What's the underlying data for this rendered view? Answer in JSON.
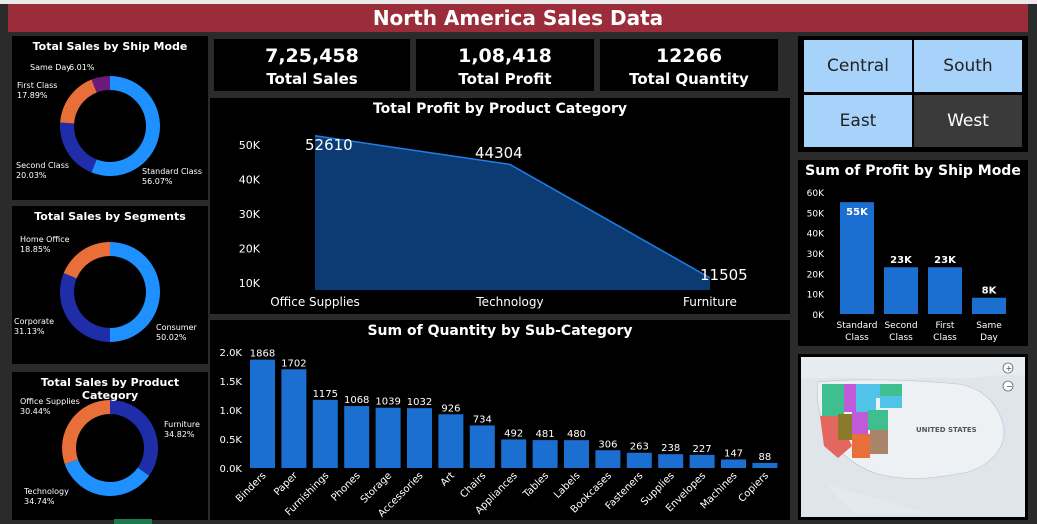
{
  "title": "North America Sales Data",
  "kpis": [
    {
      "value": "7,25,458",
      "label": "Total Sales"
    },
    {
      "value": "1,08,418",
      "label": "Total Profit"
    },
    {
      "value": "12266",
      "label": "Total Quantity"
    }
  ],
  "region_slicer": {
    "items": [
      {
        "label": "Central",
        "selected": true
      },
      {
        "label": "South",
        "selected": true
      },
      {
        "label": "East",
        "selected": true
      },
      {
        "label": "West",
        "selected": false
      }
    ]
  },
  "colors": {
    "title_bar": "#9b2d3a",
    "blue": "#1e90ff",
    "dark_blue": "#1f2ea8",
    "orange": "#e86f3a",
    "purple": "#6b1a7a",
    "bar": "#1a6fd0"
  },
  "donuts": {
    "ship_mode": {
      "title": "Total Sales by Ship Mode",
      "slices": [
        {
          "name": "Standard Class",
          "value": 56.07,
          "label": "56.07%",
          "color": "#1e90ff"
        },
        {
          "name": "Second Class",
          "value": 20.03,
          "label": "20.03%",
          "color": "#1f2ea8"
        },
        {
          "name": "First Class",
          "value": 17.89,
          "label": "17.89%",
          "color": "#e86f3a"
        },
        {
          "name": "Same Day",
          "value": 6.01,
          "label": "6.01%",
          "color": "#6b1a7a"
        }
      ]
    },
    "segments": {
      "title": "Total Sales by Segments",
      "slices": [
        {
          "name": "Consumer",
          "value": 50.02,
          "label": "50.02%",
          "color": "#1e90ff"
        },
        {
          "name": "Corporate",
          "value": 31.13,
          "label": "31.13%",
          "color": "#1f2ea8"
        },
        {
          "name": "Home Office",
          "value": 18.85,
          "label": "18.85%",
          "color": "#e86f3a"
        }
      ]
    },
    "product_category": {
      "title": "Total Sales by Product Category",
      "slices": [
        {
          "name": "Furniture",
          "value": 34.82,
          "label": "34.82%",
          "color": "#1f2ea8"
        },
        {
          "name": "Technology",
          "value": 34.74,
          "label": "34.74%",
          "color": "#1e90ff"
        },
        {
          "name": "Office Supplies",
          "value": 30.44,
          "label": "30.44%",
          "color": "#e86f3a"
        }
      ]
    }
  },
  "chart_data": [
    {
      "type": "area",
      "title": "Total Profit by Product Category",
      "categories": [
        "Office Supplies",
        "Technology",
        "Furniture"
      ],
      "values": [
        52610,
        44304,
        11505
      ],
      "data_labels": [
        "52610",
        "44304",
        "11505"
      ],
      "yticks": [
        "10K",
        "20K",
        "30K",
        "40K",
        "50K"
      ],
      "ylim": [
        8000,
        56000
      ]
    },
    {
      "type": "bar",
      "title": "Sum of Quantity by Sub-Category",
      "categories": [
        "Binders",
        "Paper",
        "Furnishings",
        "Phones",
        "Storage",
        "Accessories",
        "Art",
        "Chairs",
        "Appliances",
        "Tables",
        "Labels",
        "Bookcases",
        "Fasteners",
        "Supplies",
        "Envelopes",
        "Machines",
        "Copiers"
      ],
      "values": [
        1868,
        1702,
        1175,
        1068,
        1039,
        1032,
        926,
        734,
        492,
        481,
        480,
        306,
        263,
        238,
        227,
        147,
        88
      ],
      "yticks": [
        "0.0K",
        "0.5K",
        "1.0K",
        "1.5K",
        "2.0K"
      ],
      "ylim": [
        0,
        2000
      ]
    },
    {
      "type": "bar",
      "title": "Sum of Profit by Ship Mode",
      "categories": [
        "Standard Class",
        "Second Class",
        "First Class",
        "Same Day"
      ],
      "values": [
        55,
        23,
        23,
        8
      ],
      "data_labels": [
        "55K",
        "23K",
        "23K",
        "8K"
      ],
      "yticks": [
        "0K",
        "10K",
        "20K",
        "30K",
        "40K",
        "50K",
        "60K"
      ],
      "ylim": [
        0,
        60
      ]
    }
  ],
  "map": {
    "label": "UNITED STATES"
  }
}
